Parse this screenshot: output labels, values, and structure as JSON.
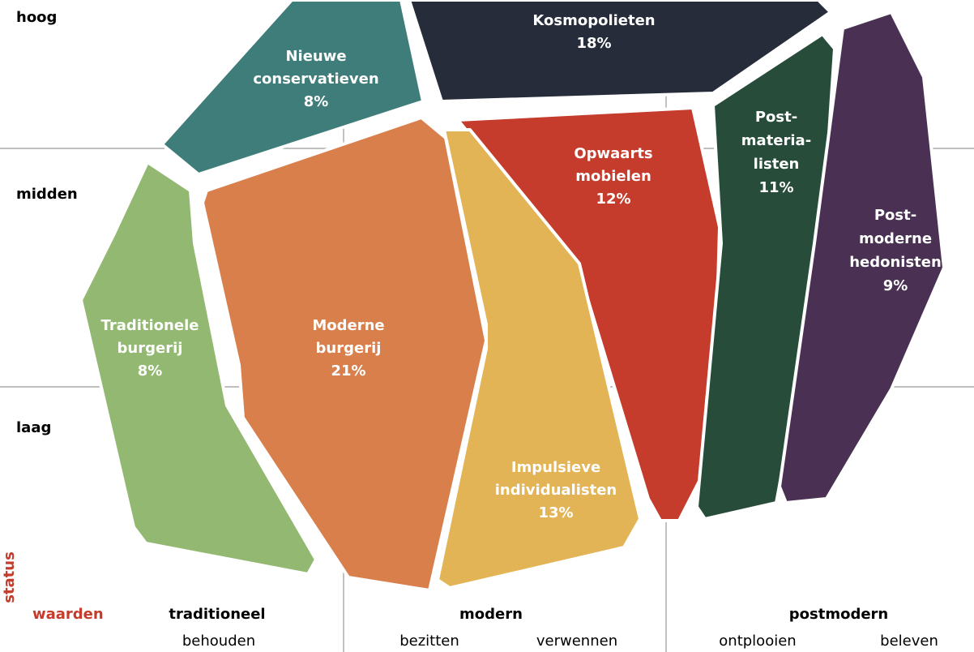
{
  "y_axis": {
    "title": "status",
    "labels": [
      "hoog",
      "midden",
      "laag"
    ]
  },
  "x_axis": {
    "title": "waarden",
    "groups": [
      {
        "label": "traditioneel",
        "sublabels": [
          "behouden"
        ]
      },
      {
        "label": "modern",
        "sublabels": [
          "bezitten",
          "verwennen"
        ]
      },
      {
        "label": "postmodern",
        "sublabels": [
          "ontplooien",
          "beleven"
        ]
      }
    ]
  },
  "segments": [
    {
      "name_lines": [
        "Nieuwe",
        "conservatieven"
      ],
      "share": "8%",
      "color": "#3f7d7a"
    },
    {
      "name_lines": [
        "Kosmopolieten"
      ],
      "share": "18%",
      "color": "#262c3a"
    },
    {
      "name_lines": [
        "Opwaarts",
        "mobielen"
      ],
      "share": "12%",
      "color": "#c53b2c"
    },
    {
      "name_lines": [
        "Post-",
        "materia-",
        "listen"
      ],
      "share": "11%",
      "color": "#274d3a"
    },
    {
      "name_lines": [
        "Post-",
        "moderne",
        "hedonisten"
      ],
      "share": "9%",
      "color": "#4a3153"
    },
    {
      "name_lines": [
        "Traditionele",
        "burgerij"
      ],
      "share": "8%",
      "color": "#93b872"
    },
    {
      "name_lines": [
        "Moderne",
        "burgerij"
      ],
      "share": "21%",
      "color": "#d97f4b"
    },
    {
      "name_lines": [
        "Impulsieve",
        "individualisten"
      ],
      "share": "13%",
      "color": "#e3b456"
    }
  ]
}
